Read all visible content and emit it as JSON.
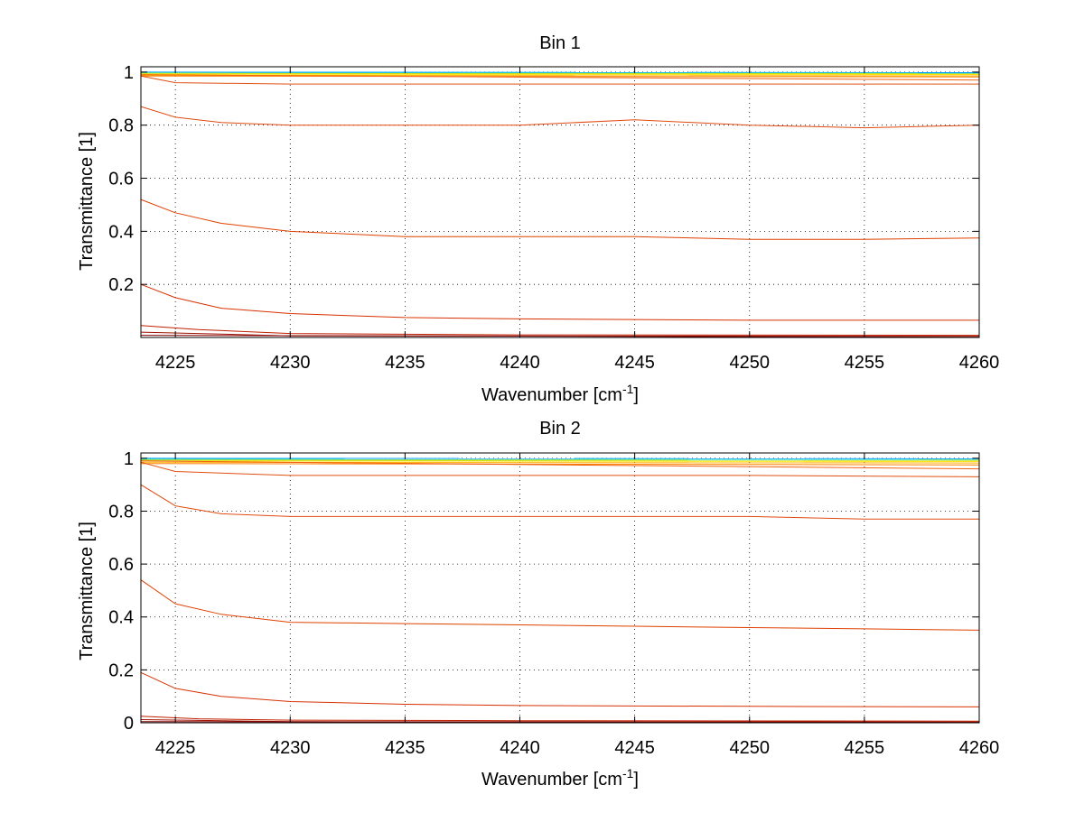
{
  "chart_data": [
    {
      "type": "line",
      "title": "Bin 1",
      "xlabel": "Wavenumber [cm",
      "xlabel_sup": "-1",
      "xlabel_end": "]",
      "ylabel": "Transmittance [1]",
      "xlim": [
        4223.5,
        4260
      ],
      "ylim": [
        0,
        1.02
      ],
      "xticks": [
        4225,
        4230,
        4235,
        4240,
        4245,
        4250,
        4255,
        4260
      ],
      "xtick_labels": [
        "4225",
        "4230",
        "4235",
        "4240",
        "4245",
        "4250",
        "4255",
        "4260"
      ],
      "yticks": [
        0.2,
        0.4,
        0.6,
        0.8,
        1
      ],
      "ytick_labels": [
        "0.2",
        "0.4",
        "0.6",
        "0.8",
        "1"
      ],
      "grid": true,
      "series": [
        {
          "color": "#00a0ff",
          "values": [
            [
              4223.5,
              1.0
            ],
            [
              4260,
              0.998
            ]
          ]
        },
        {
          "color": "#40e0c0",
          "values": [
            [
              4223.5,
              0.997
            ],
            [
              4260,
              0.996
            ]
          ]
        },
        {
          "color": "#c0e020",
          "values": [
            [
              4223.5,
              0.995
            ],
            [
              4260,
              0.994
            ]
          ]
        },
        {
          "color": "#ffe000",
          "values": [
            [
              4223.5,
              0.992
            ],
            [
              4260,
              0.991
            ]
          ]
        },
        {
          "color": "#ffb000",
          "values": [
            [
              4223.5,
              0.988
            ],
            [
              4260,
              0.986
            ]
          ]
        },
        {
          "color": "#ff8000",
          "values": [
            [
              4223.5,
              0.985
            ],
            [
              4260,
              0.982
            ]
          ]
        },
        {
          "color": "#f06010",
          "values": [
            [
              4223.5,
              0.99
            ],
            [
              4260,
              0.97
            ]
          ]
        },
        {
          "color": "#e05010",
          "values": [
            [
              4223.5,
              0.985
            ],
            [
              4225,
              0.96
            ],
            [
              4230,
              0.955
            ],
            [
              4240,
              0.955
            ],
            [
              4250,
              0.955
            ],
            [
              4260,
              0.955
            ]
          ]
        },
        {
          "color": "#e04a10",
          "values": [
            [
              4223.5,
              0.87
            ],
            [
              4225,
              0.83
            ],
            [
              4227,
              0.81
            ],
            [
              4230,
              0.8
            ],
            [
              4240,
              0.8
            ],
            [
              4245,
              0.82
            ],
            [
              4250,
              0.8
            ],
            [
              4255,
              0.79
            ],
            [
              4260,
              0.8
            ]
          ]
        },
        {
          "color": "#e04000",
          "values": [
            [
              4223.5,
              0.52
            ],
            [
              4225,
              0.47
            ],
            [
              4227,
              0.43
            ],
            [
              4230,
              0.4
            ],
            [
              4235,
              0.38
            ],
            [
              4240,
              0.38
            ],
            [
              4245,
              0.38
            ],
            [
              4250,
              0.37
            ],
            [
              4255,
              0.37
            ],
            [
              4260,
              0.375
            ]
          ]
        },
        {
          "color": "#d83000",
          "values": [
            [
              4223.5,
              0.2
            ],
            [
              4225,
              0.15
            ],
            [
              4227,
              0.11
            ],
            [
              4230,
              0.09
            ],
            [
              4235,
              0.075
            ],
            [
              4240,
              0.07
            ],
            [
              4250,
              0.065
            ],
            [
              4260,
              0.065
            ]
          ]
        },
        {
          "color": "#c02000",
          "values": [
            [
              4223.5,
              0.045
            ],
            [
              4226,
              0.03
            ],
            [
              4230,
              0.015
            ],
            [
              4240,
              0.01
            ],
            [
              4260,
              0.008
            ]
          ]
        },
        {
          "color": "#a01000",
          "values": [
            [
              4223.5,
              0.02
            ],
            [
              4230,
              0.006
            ],
            [
              4260,
              0.004
            ]
          ]
        },
        {
          "color": "#800000",
          "values": [
            [
              4223.5,
              0.008
            ],
            [
              4260,
              0.001
            ]
          ]
        }
      ]
    },
    {
      "type": "line",
      "title": "Bin 2",
      "xlabel": "Wavenumber [cm",
      "xlabel_sup": "-1",
      "xlabel_end": "]",
      "ylabel": "Transmittance [1]",
      "xlim": [
        4223.5,
        4260
      ],
      "ylim": [
        0,
        1.02
      ],
      "xticks": [
        4225,
        4230,
        4235,
        4240,
        4245,
        4250,
        4255,
        4260
      ],
      "xtick_labels": [
        "4225",
        "4230",
        "4235",
        "4240",
        "4245",
        "4250",
        "4255",
        "4260"
      ],
      "yticks": [
        0,
        0.2,
        0.4,
        0.6,
        0.8,
        1
      ],
      "ytick_labels": [
        "0",
        "0.2",
        "0.4",
        "0.6",
        "0.8",
        "1"
      ],
      "grid": true,
      "series": [
        {
          "color": "#00a0ff",
          "values": [
            [
              4223.5,
              1.0
            ],
            [
              4260,
              0.998
            ]
          ]
        },
        {
          "color": "#40e0c0",
          "values": [
            [
              4223.5,
              0.996
            ],
            [
              4260,
              0.995
            ]
          ]
        },
        {
          "color": "#c0e020",
          "values": [
            [
              4223.5,
              0.993
            ],
            [
              4260,
              0.992
            ]
          ]
        },
        {
          "color": "#ffe000",
          "values": [
            [
              4223.5,
              0.99
            ],
            [
              4260,
              0.988
            ]
          ]
        },
        {
          "color": "#ffb000",
          "values": [
            [
              4223.5,
              0.985
            ],
            [
              4260,
              0.982
            ]
          ]
        },
        {
          "color": "#ff8000",
          "values": [
            [
              4223.5,
              0.98
            ],
            [
              4260,
              0.975
            ]
          ]
        },
        {
          "color": "#f06010",
          "values": [
            [
              4223.5,
              0.99
            ],
            [
              4260,
              0.96
            ]
          ]
        },
        {
          "color": "#e05010",
          "values": [
            [
              4223.5,
              0.985
            ],
            [
              4225,
              0.95
            ],
            [
              4230,
              0.935
            ],
            [
              4240,
              0.935
            ],
            [
              4250,
              0.935
            ],
            [
              4260,
              0.93
            ]
          ]
        },
        {
          "color": "#e04a10",
          "values": [
            [
              4223.5,
              0.9
            ],
            [
              4225,
              0.82
            ],
            [
              4227,
              0.79
            ],
            [
              4230,
              0.78
            ],
            [
              4240,
              0.78
            ],
            [
              4250,
              0.78
            ],
            [
              4255,
              0.77
            ],
            [
              4260,
              0.77
            ]
          ]
        },
        {
          "color": "#e04000",
          "values": [
            [
              4223.5,
              0.54
            ],
            [
              4225,
              0.45
            ],
            [
              4227,
              0.41
            ],
            [
              4230,
              0.38
            ],
            [
              4235,
              0.375
            ],
            [
              4240,
              0.37
            ],
            [
              4245,
              0.365
            ],
            [
              4250,
              0.36
            ],
            [
              4255,
              0.355
            ],
            [
              4260,
              0.35
            ]
          ]
        },
        {
          "color": "#d83000",
          "values": [
            [
              4223.5,
              0.19
            ],
            [
              4225,
              0.13
            ],
            [
              4227,
              0.1
            ],
            [
              4230,
              0.08
            ],
            [
              4235,
              0.07
            ],
            [
              4240,
              0.065
            ],
            [
              4250,
              0.062
            ],
            [
              4260,
              0.06
            ]
          ]
        },
        {
          "color": "#c02000",
          "values": [
            [
              4223.5,
              0.025
            ],
            [
              4226,
              0.015
            ],
            [
              4230,
              0.01
            ],
            [
              4240,
              0.008
            ],
            [
              4260,
              0.006
            ]
          ]
        },
        {
          "color": "#a01000",
          "values": [
            [
              4223.5,
              0.012
            ],
            [
              4230,
              0.004
            ],
            [
              4260,
              0.003
            ]
          ]
        },
        {
          "color": "#800000",
          "values": [
            [
              4223.5,
              0.004
            ],
            [
              4260,
              0.001
            ]
          ]
        }
      ]
    }
  ]
}
